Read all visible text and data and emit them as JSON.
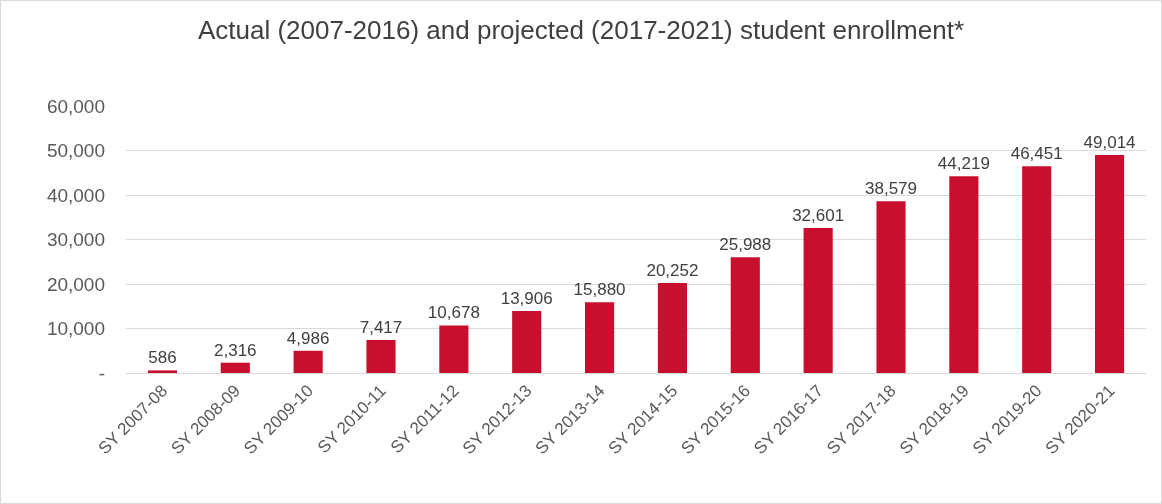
{
  "chart_data": {
    "type": "bar",
    "title": "Actual (2007-2016) and projected (2017-2021) student enrollment*",
    "categories": [
      "SY 2007-08",
      "SY 2008-09",
      "SY 2009-10",
      "SY 2010-11",
      "SY 2011-12",
      "SY 2012-13",
      "SY 2013-14",
      "SY 2014-15",
      "SY 2015-16",
      "SY 2016-17",
      "SY 2017-18",
      "SY 2018-19",
      "SY 2019-20",
      "SY 2020-21"
    ],
    "values": [
      586,
      2316,
      4986,
      7417,
      10678,
      13906,
      15880,
      20252,
      25988,
      32601,
      38579,
      44219,
      46451,
      49014
    ],
    "value_labels": [
      "586",
      "2,316",
      "4,986",
      "7,417",
      "10,678",
      "13,906",
      "15,880",
      "20,252",
      "25,988",
      "32,601",
      "38,579",
      "44,219",
      "46,451",
      "49,014"
    ],
    "color": "#c8102e",
    "ylim": [
      0,
      60000
    ],
    "yticks": [
      {
        "value": 0,
        "label": "-"
      },
      {
        "value": 10000,
        "label": "10,000"
      },
      {
        "value": 20000,
        "label": "20,000"
      },
      {
        "value": 30000,
        "label": "30,000"
      },
      {
        "value": 40000,
        "label": "40,000"
      },
      {
        "value": 50000,
        "label": "50,000"
      },
      {
        "value": 60000,
        "label": "60,000"
      }
    ],
    "grid": "y",
    "legend": false
  }
}
